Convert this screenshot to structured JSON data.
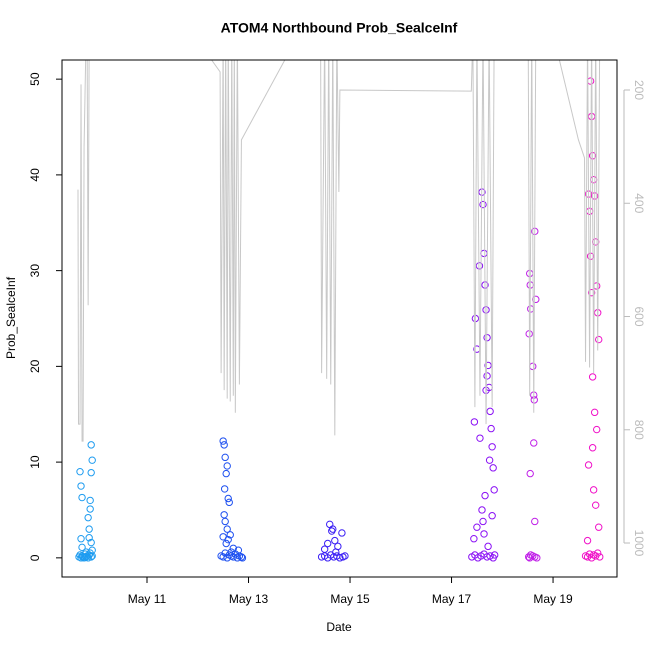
{
  "chart_data": {
    "type": "scatter",
    "title": "ATOM4 Northbound Prob_SealceInf",
    "x_label": "Date",
    "y_label": "Prob_SealceInf",
    "xlim": [
      9.325,
      20.26
    ],
    "xticks": [
      {
        "value": 11,
        "label": "May 11"
      },
      {
        "value": 13,
        "label": "May 13"
      },
      {
        "value": 15,
        "label": "May 15"
      },
      {
        "value": 17,
        "label": "May 17"
      },
      {
        "value": 19,
        "label": "May 19"
      }
    ],
    "ylim": [
      -2,
      52
    ],
    "yticks": [
      0,
      10,
      20,
      30,
      40,
      50
    ],
    "y2lim": [
      1060,
      147
    ],
    "y2ticks": [
      200,
      400,
      600,
      800,
      1000
    ],
    "y2_color": "#bbbbbb",
    "series": [
      {
        "color": "#1e9cf0",
        "x": [
          9.66,
          9.68,
          9.7,
          9.72,
          9.74,
          9.76,
          9.78,
          9.8,
          9.82,
          9.84,
          9.86,
          9.88,
          9.9,
          9.92,
          9.68,
          9.7,
          9.72,
          9.84,
          9.86,
          9.88,
          9.9,
          9.9,
          9.92,
          9.88,
          9.86,
          9.7,
          9.72,
          9.9,
          9.92,
          9.8
        ],
        "values": [
          0.1,
          0.3,
          0,
          0.2,
          0.1,
          0,
          0.4,
          0.1,
          0.2,
          0,
          0.3,
          0.5,
          0.1,
          0.2,
          9,
          7.5,
          6.3,
          4.2,
          3,
          5.1,
          8.9,
          11.8,
          10.2,
          6,
          2.1,
          2,
          1.1,
          1.6,
          0.8,
          0.6
        ]
      },
      {
        "color": "#1e50f0",
        "x": [
          12.46,
          12.5,
          12.54,
          12.58,
          12.62,
          12.66,
          12.7,
          12.74,
          12.78,
          12.82,
          12.86,
          12.88,
          12.5,
          12.52,
          12.54,
          12.56,
          12.58,
          12.6,
          12.52,
          12.54,
          12.62,
          12.64,
          12.5,
          12.56,
          12.6,
          12.7,
          12.8,
          12.66,
          12.58,
          12.53
        ],
        "values": [
          0.2,
          0.1,
          0.5,
          0,
          0.3,
          0.2,
          0.1,
          0.4,
          0,
          0.2,
          0.1,
          0,
          12.2,
          11.8,
          10.5,
          8.8,
          9.6,
          6.2,
          4.5,
          3.8,
          5.8,
          2.4,
          2.2,
          1.5,
          1.9,
          1,
          0.8,
          0.6,
          3,
          7.2
        ]
      },
      {
        "color": "#3a1ef5",
        "x": [
          14.44,
          14.5,
          14.56,
          14.62,
          14.68,
          14.74,
          14.8,
          14.86,
          14.9,
          14.6,
          14.64,
          14.5,
          14.7,
          14.76,
          14.56,
          14.84,
          14.66,
          14.72
        ],
        "values": [
          0.1,
          0.2,
          0,
          0.3,
          0.1,
          0.2,
          0,
          0.1,
          0.2,
          3.5,
          2.8,
          0.9,
          1.8,
          1.2,
          1.5,
          2.6,
          3,
          0.6
        ]
      },
      {
        "color": "#8a10f5",
        "x": [
          17.4,
          17.46,
          17.52,
          17.58,
          17.64,
          17.7,
          17.76,
          17.82,
          17.85,
          17.45,
          17.47,
          17.5,
          17.55,
          17.6,
          17.62,
          17.64,
          17.66,
          17.68,
          17.7,
          17.72,
          17.74,
          17.76,
          17.78,
          17.8,
          17.82,
          17.84,
          17.6,
          17.62,
          17.64,
          17.66,
          17.7,
          17.75,
          17.8,
          17.44,
          17.5,
          17.56,
          17.68,
          17.72
        ],
        "values": [
          0.1,
          0.3,
          0,
          0.2,
          0.4,
          0.1,
          0.2,
          0,
          0.3,
          14.2,
          25,
          21.8,
          30.5,
          38.2,
          36.9,
          31.8,
          28.5,
          25.9,
          23,
          20.1,
          17.8,
          15.3,
          13.5,
          11.6,
          9.4,
          7.1,
          5,
          3.8,
          2.5,
          6.5,
          19,
          10.2,
          4.4,
          2,
          3.2,
          12.5,
          17.5,
          1.2
        ]
      },
      {
        "color": "#c020e8",
        "x": [
          18.52,
          18.54,
          18.56,
          18.6,
          18.64,
          18.68,
          18.54,
          18.55,
          18.56,
          18.53,
          18.6,
          18.62,
          18.64,
          18.66,
          18.62,
          18.64,
          18.55,
          18.63
        ],
        "values": [
          0.1,
          0,
          0.3,
          0.2,
          0.1,
          0,
          29.7,
          28.5,
          26,
          23.4,
          20,
          17,
          34.1,
          27,
          12,
          3.8,
          8.8,
          16.5
        ]
      },
      {
        "color": "#f010c8",
        "x": [
          19.64,
          19.68,
          19.72,
          19.76,
          19.8,
          19.84,
          19.88,
          19.92,
          19.7,
          19.72,
          19.74,
          19.76,
          19.78,
          19.8,
          19.82,
          19.84,
          19.86,
          19.88,
          19.9,
          19.74,
          19.76,
          19.78,
          19.82,
          19.86,
          19.7,
          19.8,
          19.84,
          19.9,
          19.68,
          19.78
        ],
        "values": [
          0.2,
          0.1,
          0.4,
          0,
          0.3,
          0.2,
          0.5,
          0.1,
          38,
          36.2,
          49.8,
          46.1,
          42,
          39.5,
          37.8,
          33,
          28.4,
          25.6,
          22.8,
          31.5,
          27.7,
          18.9,
          15.2,
          13.4,
          9.7,
          7.1,
          5.5,
          3.2,
          1.8,
          11.5
        ]
      },
      {
        "type": "line",
        "axis": "y2",
        "color": "#c8c8c8",
        "x": [
          9.64,
          9.65,
          9.68,
          9.7,
          9.72,
          9.74,
          9.76,
          9.8,
          9.82,
          9.84,
          9.86,
          9.88,
          11.9,
          12.44,
          12.46,
          12.5,
          12.52,
          12.55,
          12.58,
          12.6,
          12.64,
          12.67,
          12.7,
          12.72,
          12.74,
          12.78,
          12.82,
          12.86,
          14.0,
          14.42,
          14.44,
          14.5,
          14.54,
          14.58,
          14.62,
          14.66,
          14.7,
          14.74,
          14.78,
          14.8,
          17.39,
          17.42,
          17.46,
          17.5,
          17.56,
          17.62,
          17.68,
          17.74,
          17.8,
          17.84,
          18.51,
          18.54,
          18.58,
          18.62,
          18.66,
          18.7,
          19.0,
          19.5,
          19.62,
          19.64,
          19.68,
          19.72,
          19.76,
          19.8,
          19.84,
          19.88,
          19.92
        ],
        "values": [
          376,
          790,
          790,
          190,
          820,
          820,
          300,
          100,
          110,
          580,
          120,
          100,
          100,
          168,
          700,
          100,
          730,
          100,
          745,
          100,
          750,
          100,
          740,
          100,
          770,
          100,
          720,
          288,
          100,
          100,
          700,
          100,
          710,
          100,
          720,
          100,
          810,
          100,
          380,
          200,
          202,
          100,
          760,
          100,
          740,
          100,
          790,
          100,
          760,
          100,
          100,
          740,
          100,
          770,
          100,
          100,
          100,
          288,
          320,
          680,
          100,
          690,
          100,
          700,
          100,
          660,
          100
        ]
      }
    ]
  }
}
